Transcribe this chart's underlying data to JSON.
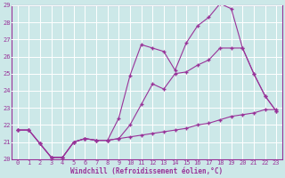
{
  "background_color": "#cce8e8",
  "grid_color": "#ffffff",
  "line_color": "#993399",
  "xlabel": "Windchill (Refroidissement éolien,°C)",
  "xlim": [
    -0.5,
    23.5
  ],
  "ylim": [
    20,
    29
  ],
  "xticks": [
    0,
    1,
    2,
    3,
    4,
    5,
    6,
    7,
    8,
    9,
    10,
    11,
    12,
    13,
    14,
    15,
    16,
    17,
    18,
    19,
    20,
    21,
    22,
    23
  ],
  "yticks": [
    20,
    21,
    22,
    23,
    24,
    25,
    26,
    27,
    28,
    29
  ],
  "curve1_x": [
    0,
    1,
    2,
    3,
    4,
    5,
    6,
    7,
    8,
    9,
    10,
    11,
    12,
    13,
    14,
    15,
    16,
    17,
    18,
    19,
    20,
    21,
    22,
    23
  ],
  "curve1_y": [
    21.7,
    21.7,
    20.9,
    20.1,
    20.1,
    21.0,
    21.2,
    21.1,
    21.1,
    21.2,
    21.3,
    21.4,
    21.5,
    21.6,
    21.7,
    21.8,
    22.0,
    22.1,
    22.3,
    22.5,
    22.6,
    22.7,
    22.9,
    22.9
  ],
  "curve2_x": [
    0,
    1,
    2,
    3,
    4,
    5,
    6,
    7,
    8,
    9,
    10,
    11,
    12,
    13,
    14,
    15,
    16,
    17,
    18,
    19,
    20,
    21,
    22,
    23
  ],
  "curve2_y": [
    21.7,
    21.7,
    20.9,
    20.1,
    20.1,
    21.0,
    21.2,
    21.1,
    21.1,
    22.4,
    24.9,
    26.7,
    26.5,
    26.3,
    25.2,
    26.8,
    27.8,
    28.3,
    29.1,
    28.8,
    26.5,
    25.0,
    23.7,
    22.8
  ],
  "curve3_x": [
    0,
    1,
    2,
    3,
    4,
    5,
    6,
    7,
    8,
    9,
    10,
    11,
    12,
    13,
    14,
    15,
    16,
    17,
    18,
    19,
    20,
    21,
    22,
    23
  ],
  "curve3_y": [
    21.7,
    21.7,
    20.9,
    20.1,
    20.1,
    21.0,
    21.2,
    21.1,
    21.1,
    21.2,
    22.0,
    23.2,
    24.4,
    24.1,
    25.0,
    25.1,
    25.5,
    25.8,
    26.5,
    26.5,
    26.5,
    25.0,
    23.7,
    22.8
  ],
  "marker": "+",
  "markersize": 3,
  "linewidth": 0.8,
  "tick_fontsize": 5,
  "xlabel_fontsize": 5.5
}
